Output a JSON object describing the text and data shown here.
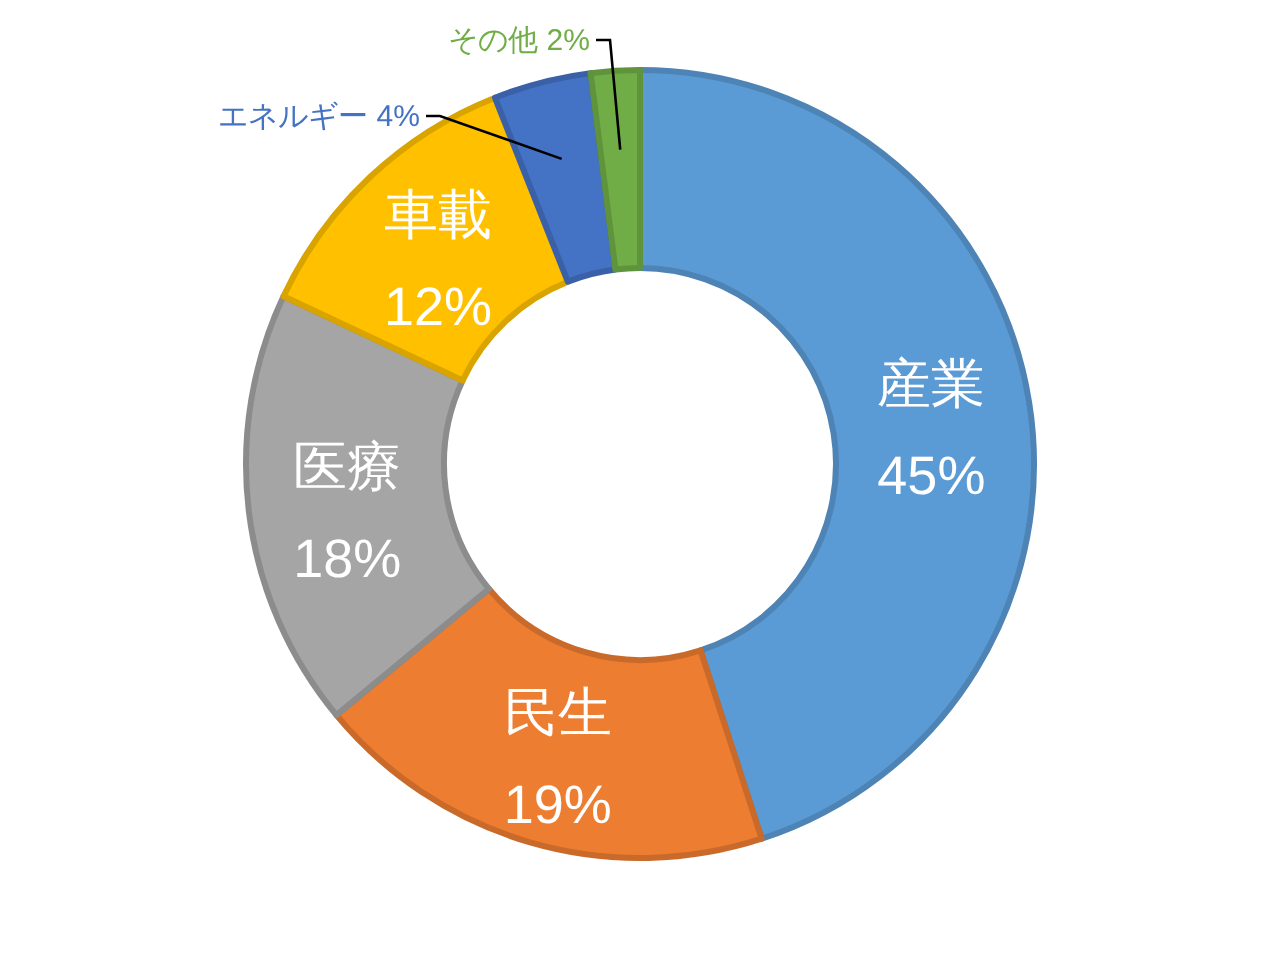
{
  "chart_data": {
    "type": "donut",
    "categories": [
      "産業",
      "民生",
      "医療",
      "車載",
      "エネルギー",
      "その他"
    ],
    "values": [
      45,
      19,
      18,
      12,
      4,
      2
    ],
    "value_labels": [
      "45%",
      "19%",
      "18%",
      "12%",
      "4%",
      "2%"
    ],
    "colors": [
      "#5b9bd5",
      "#ed7d31",
      "#a5a5a5",
      "#ffc000",
      "#4472c4",
      "#70ad47"
    ],
    "legend": false
  }
}
